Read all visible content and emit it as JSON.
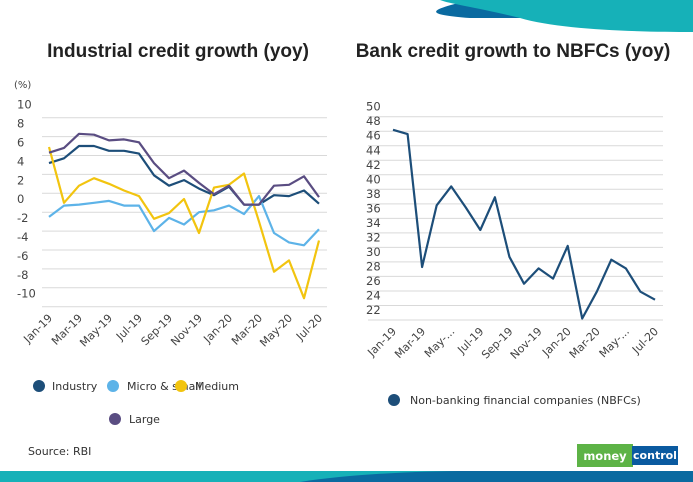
{
  "colors": {
    "industry": "#1d4e79",
    "micro_small": "#5db3e8",
    "medium": "#f2c40f",
    "large": "#5a4d82",
    "nbfc": "#1d4e79",
    "band_dark": "#0a6aa0",
    "band_teal": "#16b1b8",
    "logo_green": "#5db346",
    "logo_blue": "#0a5aa0"
  },
  "source": "Source: RBI",
  "logo": {
    "part1": "money",
    "part2": "control"
  },
  "chart_data": [
    {
      "type": "line",
      "title": "Industrial credit growth (yoy)",
      "ylabel": "(%)",
      "ylim": [
        -10,
        10
      ],
      "yticks": [
        "10",
        "8",
        "6",
        "4",
        "2",
        "0",
        "-2",
        "-4",
        "-6",
        "-8",
        "-10"
      ],
      "ytick_values": [
        10,
        8,
        6,
        4,
        2,
        0,
        -2,
        -4,
        -6,
        -8,
        -10
      ],
      "grid": true,
      "legend_position": "bottom",
      "x": [
        "Jan-19",
        "Feb-19",
        "Mar-19",
        "Apr-19",
        "May-19",
        "Jun-19",
        "Jul-19",
        "Aug-19",
        "Sep-19",
        "Oct-19",
        "Nov-19",
        "Dec-19",
        "Jan-20",
        "Feb-20",
        "Mar-20",
        "Apr-20",
        "May-20",
        "Jun-20",
        "Jul-20"
      ],
      "xticks": [
        "Jan-19",
        "Mar-19",
        "May-19",
        "Jul-19",
        "Sep-19",
        "Nov-19",
        "Jan-20",
        "Mar-20",
        "May-20",
        "Jul-20"
      ],
      "series": [
        {
          "name": "Industry",
          "color_key": "industry",
          "values": [
            5.2,
            5.7,
            7.0,
            7.0,
            6.5,
            6.5,
            6.2,
            3.9,
            2.8,
            3.4,
            2.5,
            1.8,
            2.7,
            0.8,
            0.8,
            1.8,
            1.7,
            2.3,
            0.9
          ]
        },
        {
          "name": "Micro & small",
          "color_key": "micro_small",
          "values": [
            -0.5,
            0.7,
            0.8,
            1.0,
            1.2,
            0.7,
            0.7,
            -2.0,
            -0.6,
            -1.3,
            0.0,
            0.2,
            0.7,
            -0.2,
            1.7,
            -2.2,
            -3.2,
            -3.5,
            -1.8
          ]
        },
        {
          "name": "Medium",
          "color_key": "medium",
          "values": [
            6.9,
            1.0,
            2.8,
            3.6,
            3.0,
            2.3,
            1.7,
            -0.7,
            -0.1,
            1.4,
            -2.2,
            2.6,
            2.9,
            4.1,
            -1.0,
            -6.3,
            -5.1,
            -9.1,
            -3.0
          ]
        },
        {
          "name": "Large",
          "color_key": "large",
          "values": [
            6.3,
            6.8,
            8.3,
            8.2,
            7.6,
            7.7,
            7.4,
            5.2,
            3.6,
            4.4,
            3.1,
            1.9,
            2.8,
            0.8,
            0.8,
            2.8,
            2.9,
            3.8,
            1.6
          ]
        }
      ]
    },
    {
      "type": "line",
      "title": "Bank credit growth to NBFCs (yoy)",
      "ylim": [
        22,
        50
      ],
      "yticks": [
        "50",
        "48",
        "46",
        "44",
        "42",
        "40",
        "38",
        "36",
        "34",
        "32",
        "30",
        "28",
        "26",
        "24",
        "22"
      ],
      "ytick_values": [
        50,
        48,
        46,
        44,
        42,
        40,
        38,
        36,
        34,
        32,
        30,
        28,
        26,
        24,
        22
      ],
      "grid": true,
      "legend_position": "bottom",
      "x": [
        "Jan-19",
        "Feb-19",
        "Mar-19",
        "Apr-19",
        "May-19",
        "Jun-19",
        "Jul-19",
        "Aug-19",
        "Sep-19",
        "Oct-19",
        "Nov-19",
        "Dec-19",
        "Jan-20",
        "Feb-20",
        "Mar-20",
        "Apr-20",
        "May-20",
        "Jun-20",
        "Jul-20"
      ],
      "xticks": [
        "Jan-19",
        "Mar-19",
        "May-...",
        "Jul-19",
        "Sep-19",
        "Nov-19",
        "Jan-20",
        "Mar-20",
        "May-...",
        "Jul-20"
      ],
      "series": [
        {
          "name": "Non-banking financial companies (NBFCs)",
          "color_key": "nbfc",
          "values": [
            48.2,
            47.6,
            29.3,
            37.8,
            40.4,
            37.5,
            34.4,
            38.9,
            30.7,
            27.0,
            29.1,
            27.7,
            32.2,
            22.2,
            25.9,
            30.3,
            29.1,
            25.9,
            24.8
          ]
        }
      ]
    }
  ]
}
